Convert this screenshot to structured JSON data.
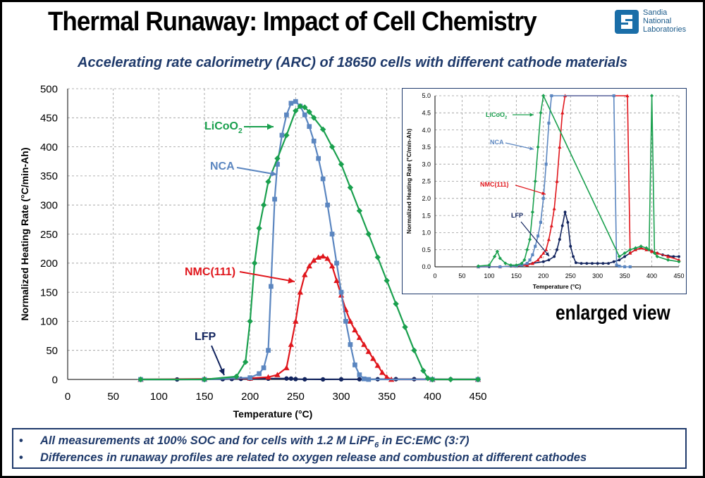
{
  "header": {
    "title": "Thermal Runaway: Impact of Cell Chemistry",
    "subtitle": "Accelerating rate calorimetry (ARC) of 18650 cells with different cathode materials",
    "logo": [
      "Sandia",
      "National",
      "Laboratories"
    ],
    "enlarged_label": "enlarged view"
  },
  "notes": [
    {
      "pre": "All measurements at 100% SOC and for cells with 1.2 M LiPF",
      "sub": "6",
      "post": " in EC:EMC (3:7)"
    },
    {
      "pre": "Differences in runaway profiles are related to oxygen release and combustion at different cathodes",
      "sub": "",
      "post": ""
    }
  ],
  "colors": {
    "LiCoO2": "#1aa04e",
    "NCA": "#5b86c0",
    "NMC(111)": "#e0161c",
    "LFP": "#12245e",
    "text_blue": "#1f3a6b"
  },
  "chart_data": [
    {
      "type": "scatter",
      "xlabel": "Temperature (°C)",
      "ylabel": "Normalized Heating Rate (°C/min-Ah)",
      "xlim": [
        0,
        450
      ],
      "ylim": [
        0,
        500
      ],
      "xticks": [
        "0",
        "50",
        "100",
        "150",
        "200",
        "250",
        "300",
        "350",
        "400",
        "450"
      ],
      "yticks": [
        "0",
        "50",
        "100",
        "150",
        "200",
        "250",
        "300",
        "350",
        "400",
        "450",
        "500"
      ],
      "grid": true,
      "annotations": [
        {
          "label": "LiCoO",
          "sub": "2",
          "series": "LiCoO2"
        },
        {
          "label": "NCA",
          "sub": "",
          "series": "NCA"
        },
        {
          "label": "NMC(111)",
          "sub": "",
          "series": "NMC(111)"
        },
        {
          "label": "LFP",
          "sub": "",
          "series": "LFP"
        }
      ],
      "series": [
        {
          "name": "LiCoO2",
          "marker": "diamond",
          "x": [
            80,
            150,
            185,
            195,
            200,
            205,
            210,
            215,
            220,
            230,
            240,
            250,
            255,
            260,
            265,
            270,
            280,
            290,
            300,
            310,
            320,
            330,
            340,
            350,
            360,
            370,
            380,
            390,
            395,
            400,
            420,
            450
          ],
          "y": [
            0,
            0,
            5,
            30,
            100,
            200,
            260,
            300,
            340,
            380,
            420,
            462,
            470,
            468,
            460,
            450,
            430,
            400,
            370,
            330,
            290,
            250,
            210,
            170,
            130,
            90,
            50,
            15,
            2,
            0,
            0,
            0
          ]
        },
        {
          "name": "NCA",
          "marker": "square",
          "x": [
            80,
            150,
            200,
            210,
            215,
            220,
            223,
            227,
            230,
            235,
            240,
            245,
            250,
            255,
            260,
            265,
            270,
            275,
            280,
            285,
            290,
            295,
            300,
            305,
            310,
            315,
            320,
            325,
            330,
            400,
            450
          ],
          "y": [
            0,
            0,
            3,
            10,
            20,
            50,
            160,
            310,
            370,
            420,
            455,
            475,
            478,
            470,
            455,
            435,
            410,
            380,
            345,
            300,
            250,
            200,
            150,
            100,
            60,
            25,
            8,
            1,
            0,
            0,
            0
          ]
        },
        {
          "name": "NMC(111)",
          "marker": "triangle",
          "x": [
            80,
            150,
            200,
            220,
            230,
            240,
            245,
            250,
            255,
            260,
            265,
            270,
            275,
            280,
            285,
            290,
            295,
            300,
            305,
            310,
            315,
            320,
            325,
            330,
            335,
            340,
            345,
            350,
            355,
            400,
            450
          ],
          "y": [
            0,
            1,
            2,
            4,
            8,
            20,
            60,
            100,
            150,
            180,
            195,
            205,
            210,
            212,
            208,
            195,
            170,
            145,
            120,
            100,
            85,
            72,
            60,
            48,
            36,
            24,
            12,
            4,
            0,
            0,
            0
          ]
        },
        {
          "name": "LFP",
          "marker": "circle",
          "x": [
            80,
            120,
            150,
            170,
            180,
            190,
            200,
            220,
            240,
            245,
            250,
            260,
            280,
            300,
            320,
            340,
            360,
            380,
            400,
            420,
            450
          ],
          "y": [
            0,
            0,
            0.2,
            0.5,
            0.8,
            1.0,
            1.2,
            1.4,
            1.6,
            1.5,
            0.6,
            0.2,
            0.1,
            0.2,
            0.3,
            0.4,
            0.5,
            0.5,
            0.4,
            0.3,
            0.3
          ]
        }
      ]
    },
    {
      "type": "scatter",
      "xlabel": "Temperature (°C)",
      "ylabel": "Normalized Heating Rate (°C/min-Ah)",
      "xlim": [
        0,
        450
      ],
      "ylim": [
        0,
        5
      ],
      "xticks": [
        "0",
        "50",
        "100",
        "150",
        "200",
        "250",
        "300",
        "350",
        "400",
        "450"
      ],
      "yticks": [
        "0.0",
        "0.5",
        "1.0",
        "1.5",
        "2.0",
        "2.5",
        "3.0",
        "3.5",
        "4.0",
        "4.5",
        "5.0"
      ],
      "grid": true,
      "annotations": [
        {
          "label": "LiCoO",
          "sub": "2",
          "series": "LiCoO2"
        },
        {
          "label": "NCA",
          "sub": "",
          "series": "NCA"
        },
        {
          "label": "NMC(111)",
          "sub": "",
          "series": "NMC(111)"
        },
        {
          "label": "LFP",
          "sub": "",
          "series": "LFP"
        }
      ],
      "series": [
        {
          "name": "LiCoO2",
          "marker": "diamond",
          "x": [
            80,
            100,
            110,
            115,
            120,
            130,
            140,
            150,
            160,
            165,
            170,
            175,
            180,
            185,
            190,
            195,
            200,
            340,
            350,
            360,
            370,
            380,
            390,
            395,
            400,
            405,
            410,
            430,
            450
          ],
          "y": [
            0.02,
            0.05,
            0.3,
            0.45,
            0.25,
            0.1,
            0.05,
            0.05,
            0.1,
            0.2,
            0.5,
            0.8,
            1.6,
            2.5,
            3.5,
            4.5,
            5.0,
            0.3,
            0.4,
            0.5,
            0.55,
            0.6,
            0.55,
            0.5,
            5.0,
            0.4,
            0.3,
            0.2,
            0.15
          ]
        },
        {
          "name": "NCA",
          "marker": "square",
          "x": [
            80,
            120,
            150,
            160,
            170,
            175,
            180,
            185,
            190,
            195,
            200,
            205,
            210,
            215,
            330,
            335,
            340,
            350,
            360
          ],
          "y": [
            0.0,
            0.0,
            0.02,
            0.05,
            0.1,
            0.2,
            0.35,
            0.6,
            0.9,
            1.3,
            2.0,
            3.0,
            4.2,
            5.0,
            5.0,
            0.05,
            0.02,
            0.0,
            0.0
          ]
        },
        {
          "name": "NMC(111)",
          "marker": "triangle",
          "x": [
            80,
            120,
            150,
            170,
            180,
            190,
            195,
            200,
            205,
            210,
            215,
            220,
            225,
            230,
            235,
            240,
            355,
            360,
            370,
            380,
            390,
            400,
            410,
            430,
            450
          ],
          "y": [
            0.0,
            0.0,
            0.02,
            0.05,
            0.1,
            0.2,
            0.3,
            0.4,
            0.5,
            0.8,
            1.2,
            1.7,
            2.5,
            3.5,
            4.5,
            5.0,
            5.0,
            0.4,
            0.5,
            0.55,
            0.5,
            0.45,
            0.4,
            0.3,
            0.2
          ]
        },
        {
          "name": "LFP",
          "marker": "circle",
          "x": [
            80,
            100,
            120,
            140,
            160,
            180,
            200,
            210,
            220,
            225,
            230,
            235,
            240,
            245,
            250,
            255,
            260,
            270,
            280,
            290,
            300,
            310,
            320,
            330,
            340,
            350,
            360,
            370,
            380,
            390,
            400,
            410,
            420,
            430,
            440,
            450
          ],
          "y": [
            0.0,
            0.0,
            0.0,
            0.02,
            0.05,
            0.1,
            0.15,
            0.2,
            0.3,
            0.5,
            0.8,
            1.2,
            1.6,
            1.3,
            0.6,
            0.3,
            0.12,
            0.1,
            0.1,
            0.1,
            0.1,
            0.1,
            0.1,
            0.15,
            0.2,
            0.3,
            0.4,
            0.5,
            0.55,
            0.5,
            0.45,
            0.4,
            0.35,
            0.32,
            0.3,
            0.3
          ]
        }
      ]
    }
  ]
}
